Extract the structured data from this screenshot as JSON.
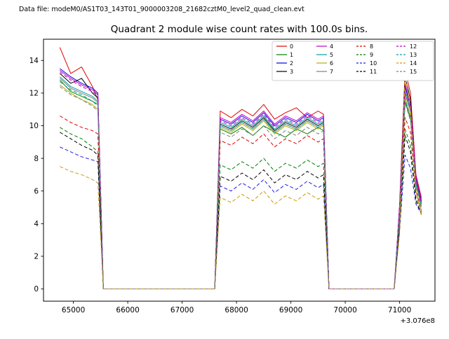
{
  "header": {
    "datafile": "Data file: modeM0/AS1T03_143T01_9000003208_21682cztM0_level2_quad_clean.evt"
  },
  "chart_data": {
    "type": "line",
    "title": "Quadrant 2 module wise count rates with 100.0s bins.",
    "xlabel": "",
    "ylabel": "",
    "x_offset_label": "+3.076e8",
    "xlim": [
      64450,
      71650
    ],
    "ylim": [
      -0.75,
      15.3
    ],
    "x_ticks": [
      65000,
      66000,
      67000,
      68000,
      69000,
      70000,
      71000
    ],
    "y_ticks": [
      0,
      2,
      4,
      6,
      8,
      10,
      12,
      14
    ],
    "grid": false,
    "legend_position": "top-right",
    "legend_columns": 4,
    "x": [
      64750,
      64950,
      65150,
      65350,
      65450,
      65550,
      65650,
      67500,
      67600,
      67700,
      67900,
      68100,
      68300,
      68500,
      68700,
      68900,
      69100,
      69300,
      69500,
      69600,
      69700,
      70900,
      71000,
      71100,
      71200,
      71300,
      71400
    ],
    "series": [
      {
        "name": "0",
        "color": "#e00000",
        "dash": "solid",
        "values": [
          14.8,
          13.2,
          13.6,
          12.4,
          11.6,
          0,
          0,
          0,
          0,
          10.9,
          10.5,
          11.0,
          10.6,
          11.3,
          10.4,
          10.8,
          11.1,
          10.5,
          10.9,
          10.7,
          0,
          0,
          5.2,
          13.4,
          12.0,
          7.0,
          5.6
        ]
      },
      {
        "name": "1",
        "color": "#007f00",
        "dash": "solid",
        "values": [
          12.8,
          12.1,
          11.8,
          11.5,
          11.3,
          0,
          0,
          0,
          0,
          9.8,
          9.5,
          9.9,
          9.4,
          10.0,
          9.6,
          9.3,
          9.8,
          9.5,
          9.9,
          9.7,
          0,
          0,
          4.6,
          11.5,
          10.4,
          6.5,
          5.2
        ]
      },
      {
        "name": "2",
        "color": "#0000e0",
        "dash": "solid",
        "values": [
          13.5,
          13.0,
          12.6,
          12.3,
          12.0,
          0,
          0,
          0,
          0,
          10.4,
          10.1,
          10.6,
          10.2,
          10.8,
          10.0,
          10.5,
          10.2,
          10.7,
          10.3,
          10.5,
          0,
          0,
          5.0,
          12.4,
          11.2,
          6.8,
          5.4
        ]
      },
      {
        "name": "3",
        "color": "#000000",
        "dash": "solid",
        "values": [
          13.2,
          12.6,
          12.9,
          12.0,
          11.7,
          0,
          0,
          0,
          0,
          10.1,
          9.8,
          10.3,
          9.9,
          10.5,
          9.7,
          10.2,
          9.9,
          10.4,
          10.0,
          10.2,
          0,
          0,
          4.9,
          13.0,
          11.6,
          6.7,
          5.3
        ]
      },
      {
        "name": "4",
        "color": "#c000c0",
        "dash": "solid",
        "values": [
          13.4,
          12.9,
          12.5,
          12.2,
          11.9,
          0,
          0,
          0,
          0,
          10.5,
          10.2,
          10.7,
          10.3,
          10.9,
          10.1,
          10.6,
          10.3,
          10.8,
          10.4,
          10.6,
          0,
          0,
          5.1,
          12.6,
          11.3,
          6.9,
          5.5
        ]
      },
      {
        "name": "5",
        "color": "#00a0a0",
        "dash": "solid",
        "values": [
          13.0,
          12.4,
          12.1,
          11.8,
          11.5,
          0,
          0,
          0,
          0,
          10.2,
          9.9,
          10.4,
          10.0,
          10.6,
          9.8,
          10.3,
          10.0,
          10.5,
          10.1,
          10.3,
          0,
          0,
          4.8,
          12.0,
          10.9,
          6.6,
          5.2
        ]
      },
      {
        "name": "6",
        "color": "#b0b000",
        "dash": "solid",
        "values": [
          12.5,
          12.0,
          11.6,
          11.3,
          11.0,
          0,
          0,
          0,
          0,
          9.9,
          9.6,
          10.1,
          9.7,
          10.3,
          9.5,
          10.0,
          9.7,
          10.2,
          9.8,
          10.0,
          0,
          0,
          4.7,
          11.8,
          10.6,
          6.4,
          5.0
        ]
      },
      {
        "name": "7",
        "color": "#7f7f7f",
        "dash": "solid",
        "values": [
          12.9,
          12.3,
          12.0,
          11.7,
          11.4,
          0,
          0,
          0,
          0,
          10.0,
          9.7,
          10.2,
          9.8,
          10.4,
          9.6,
          10.1,
          9.8,
          10.3,
          9.9,
          10.1,
          0,
          0,
          4.8,
          12.2,
          11.0,
          6.5,
          5.1
        ]
      },
      {
        "name": "8",
        "color": "#e00000",
        "dash": "dashed",
        "values": [
          10.6,
          10.2,
          9.9,
          9.7,
          9.5,
          0,
          0,
          0,
          0,
          9.1,
          8.8,
          9.3,
          8.9,
          9.5,
          8.7,
          9.2,
          8.9,
          9.4,
          9.0,
          9.2,
          0,
          0,
          4.4,
          10.5,
          9.6,
          6.0,
          4.8
        ]
      },
      {
        "name": "9",
        "color": "#007f00",
        "dash": "dashed",
        "values": [
          9.9,
          9.5,
          9.2,
          8.7,
          8.4,
          0,
          0,
          0,
          0,
          7.6,
          7.3,
          7.8,
          7.4,
          8.0,
          7.2,
          7.7,
          7.4,
          7.9,
          7.5,
          7.7,
          0,
          0,
          4.0,
          9.8,
          8.8,
          5.6,
          4.7
        ]
      },
      {
        "name": "10",
        "color": "#2020e0",
        "dash": "dashed",
        "values": [
          8.7,
          8.4,
          8.1,
          7.9,
          7.8,
          0,
          0,
          0,
          0,
          6.3,
          6.0,
          6.5,
          6.1,
          6.7,
          5.9,
          6.4,
          6.1,
          6.6,
          6.2,
          6.4,
          0,
          0,
          3.6,
          8.2,
          7.4,
          5.2,
          4.6
        ]
      },
      {
        "name": "11",
        "color": "#000000",
        "dash": "dashed",
        "values": [
          9.6,
          9.2,
          8.8,
          8.5,
          8.2,
          0,
          0,
          0,
          0,
          6.9,
          6.6,
          7.1,
          6.7,
          7.3,
          6.5,
          7.0,
          6.7,
          7.2,
          6.8,
          7.0,
          0,
          0,
          3.8,
          9.4,
          8.4,
          5.4,
          4.6
        ]
      },
      {
        "name": "12",
        "color": "#c000c0",
        "dash": "dashed",
        "values": [
          13.3,
          12.8,
          12.4,
          12.1,
          11.8,
          0,
          0,
          0,
          0,
          10.3,
          10.0,
          10.5,
          10.1,
          10.7,
          9.9,
          10.4,
          10.1,
          10.6,
          10.2,
          10.4,
          0,
          0,
          5.0,
          12.0,
          11.0,
          6.7,
          5.3
        ]
      },
      {
        "name": "13",
        "color": "#00a0a0",
        "dash": "dashed",
        "values": [
          12.7,
          12.2,
          11.9,
          11.5,
          11.2,
          0,
          0,
          0,
          0,
          10.0,
          9.7,
          10.2,
          9.8,
          10.4,
          9.6,
          10.1,
          9.8,
          10.3,
          9.9,
          10.1,
          0,
          0,
          4.8,
          11.6,
          10.5,
          6.4,
          5.1
        ]
      },
      {
        "name": "14",
        "color": "#cc9900",
        "dash": "dashed",
        "values": [
          7.5,
          7.2,
          7.0,
          6.7,
          6.5,
          0,
          0,
          0,
          0,
          5.6,
          5.3,
          5.8,
          5.4,
          6.0,
          5.2,
          5.7,
          5.4,
          5.9,
          5.5,
          5.7,
          0,
          0,
          3.4,
          13.2,
          11.0,
          6.0,
          4.5
        ]
      },
      {
        "name": "15",
        "color": "#7f7f7f",
        "dash": "dashed",
        "values": [
          12.4,
          11.9,
          11.6,
          11.2,
          10.9,
          0,
          0,
          0,
          0,
          9.6,
          9.3,
          9.8,
          9.4,
          10.0,
          9.2,
          9.7,
          9.4,
          9.9,
          9.5,
          9.7,
          0,
          0,
          4.6,
          11.4,
          10.3,
          6.3,
          4.8
        ]
      }
    ]
  }
}
